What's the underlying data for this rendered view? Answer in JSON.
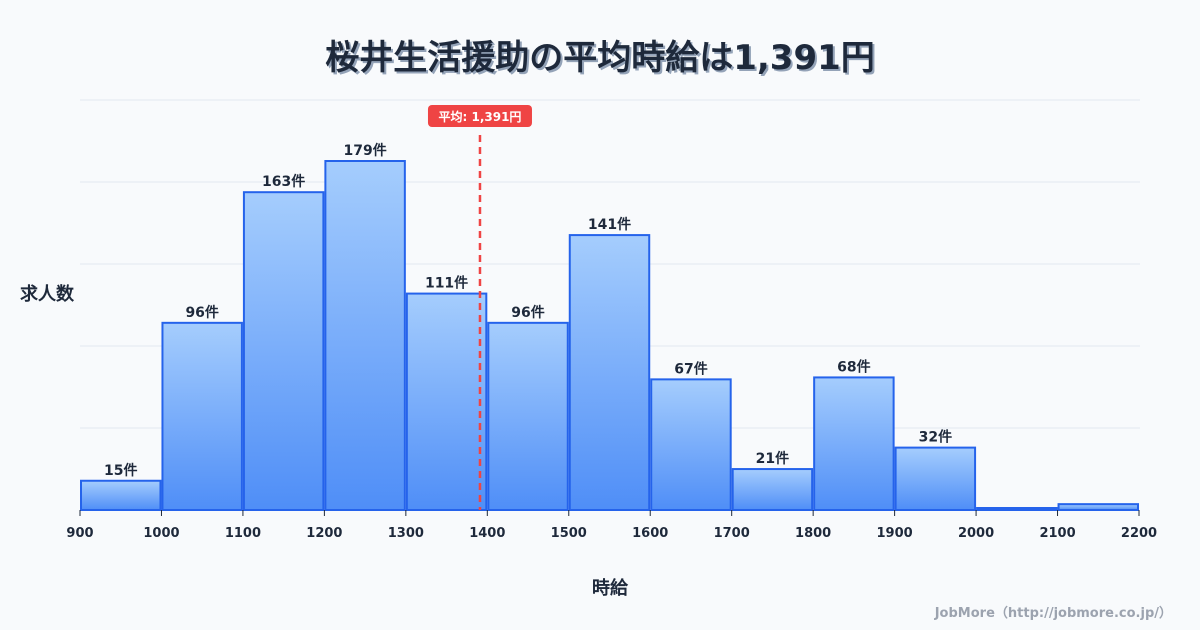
{
  "header": {
    "title": "桜井生活援助の平均時給は1,391円"
  },
  "axes": {
    "ylabel": "求人数",
    "xlabel": "時給"
  },
  "credit": "JobMore（http://jobmore.co.jp/）",
  "colors": {
    "bar_top": "#a5cdfd",
    "bar_bottom": "#4f8ef7",
    "bar_border": "#2563eb",
    "mean_line": "#ef4444",
    "grid": "#e2e8f0"
  },
  "chart_data": {
    "type": "bar",
    "title": "桜井生活援助の平均時給は1,391円",
    "xlabel": "時給",
    "ylabel": "求人数",
    "bins": [
      [
        900,
        1000
      ],
      [
        1000,
        1100
      ],
      [
        1100,
        1200
      ],
      [
        1200,
        1300
      ],
      [
        1300,
        1400
      ],
      [
        1400,
        1500
      ],
      [
        1500,
        1600
      ],
      [
        1600,
        1700
      ],
      [
        1700,
        1800
      ],
      [
        1800,
        1900
      ],
      [
        1900,
        2000
      ],
      [
        2000,
        2100
      ],
      [
        2100,
        2200
      ]
    ],
    "categories": [
      "900-1000",
      "1000-1100",
      "1100-1200",
      "1200-1300",
      "1300-1400",
      "1400-1500",
      "1500-1600",
      "1600-1700",
      "1700-1800",
      "1800-1900",
      "1900-2000",
      "2000-2100",
      "2100-2200"
    ],
    "values": [
      15,
      96,
      163,
      179,
      111,
      96,
      141,
      67,
      21,
      68,
      32,
      1,
      3
    ],
    "labels": [
      "15件",
      "96件",
      "163件",
      "179件",
      "111件",
      "96件",
      "141件",
      "67件",
      "21件",
      "68件",
      "32件",
      "",
      ""
    ],
    "xticks": [
      900,
      1000,
      1100,
      1200,
      1300,
      1400,
      1500,
      1600,
      1700,
      1800,
      1900,
      2000,
      2100,
      2200
    ],
    "xlim": [
      900,
      2200
    ],
    "ylim": [
      0,
      210
    ],
    "grid": true,
    "mean": {
      "value": 1391,
      "label": "平均: 1,391円"
    }
  }
}
